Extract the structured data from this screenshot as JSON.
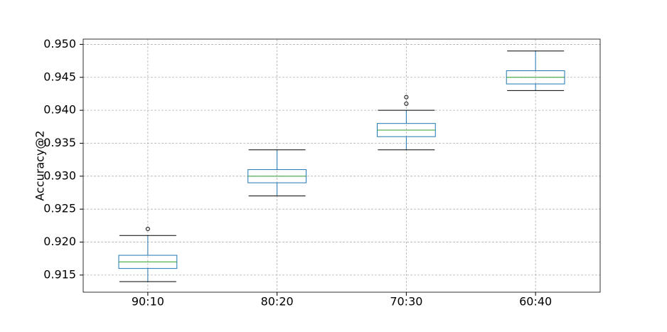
{
  "chart_data": {
    "type": "box",
    "y_label": "Accuracy@2",
    "categories": [
      "90:10",
      "80:20",
      "70:30",
      "60:40"
    ],
    "boxes": [
      {
        "low": 0.914,
        "q1": 0.916,
        "median": 0.917,
        "q3": 0.918,
        "high": 0.921,
        "outliers": [
          0.922
        ]
      },
      {
        "low": 0.927,
        "q1": 0.929,
        "median": 0.93,
        "q3": 0.931,
        "high": 0.934,
        "outliers": []
      },
      {
        "low": 0.934,
        "q1": 0.936,
        "median": 0.937,
        "q3": 0.938,
        "high": 0.94,
        "outliers": [
          0.941,
          0.942
        ]
      },
      {
        "low": 0.943,
        "q1": 0.944,
        "median": 0.945,
        "q3": 0.946,
        "high": 0.949,
        "outliers": []
      }
    ],
    "box_color": "#1f77b4",
    "median_color": "#2ca02c",
    "cap_color": "#000000",
    "ylim": [
      0.9124,
      0.9508
    ],
    "yticks": [
      0.915,
      {
        "value": 0.92,
        "label": "0.920"
      },
      0.925,
      {
        "value": 0.93,
        "label": "0.930"
      },
      0.935,
      {
        "value": 0.94,
        "label": "0.940"
      },
      0.945,
      {
        "value": 0.95,
        "label": "0.950"
      }
    ],
    "grid": true
  }
}
